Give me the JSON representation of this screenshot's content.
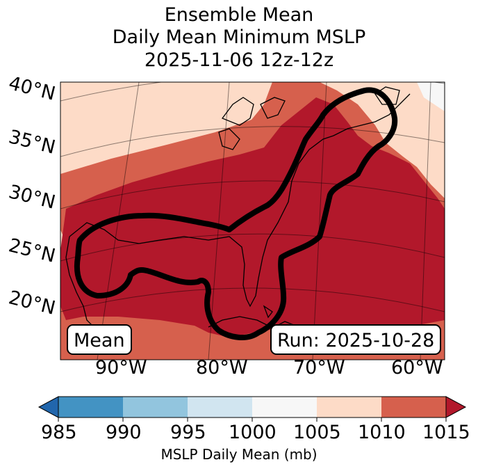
{
  "title": {
    "line1": "Ensemble Mean",
    "line2": "Daily Mean Minimum MSLP",
    "line3": "2025-11-06 12z-12z"
  },
  "map": {
    "lat_labels": [
      "40°N",
      "35°N",
      "30°N",
      "25°N",
      "20°N"
    ],
    "lon_labels": [
      "90°W",
      "80°W",
      "70°W",
      "60°W"
    ],
    "mean_badge": "Mean",
    "run_badge": "Run: 2025-10-28",
    "colors": {
      "bin_1005_1010": "#fddbc7",
      "bin_1010_1015": "#d6604d",
      "bin_above_1015": "#b2182b",
      "bin_1000_1005": "#f7f7f7",
      "contour": "#000000"
    }
  },
  "colorbar": {
    "ticks": [
      "985",
      "990",
      "995",
      "1000",
      "1005",
      "1010",
      "1015"
    ],
    "label": "MSLP Daily Mean (mb)",
    "colors": [
      "#2166ac",
      "#4393c3",
      "#92c5de",
      "#d1e5f0",
      "#f7f7f7",
      "#fddbc7",
      "#d6604d",
      "#b2182b"
    ]
  }
}
